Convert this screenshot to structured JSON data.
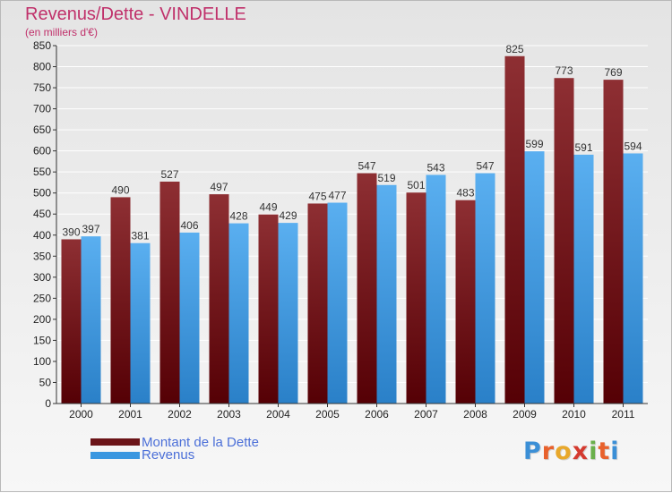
{
  "title": "Revenus/Dette - VINDELLE",
  "subtitle": "(en milliers d'€)",
  "colors": {
    "title": "#c0306a",
    "dette": "#6b1418",
    "revenus": "#3a97e0",
    "legend_text": "#4b6fd8"
  },
  "legend": {
    "dette_label": "Montant de la Dette",
    "revenus_label": "Revenus"
  },
  "logo": {
    "letters": [
      "P",
      "r",
      "o",
      "x",
      "i",
      "t",
      "i"
    ],
    "colors": [
      "#3b8fd6",
      "#e8612c",
      "#e8a82c",
      "#d43a2f",
      "#6ab04c",
      "#e8612c",
      "#3b8fd6"
    ]
  },
  "chart_data": {
    "type": "bar",
    "categories": [
      "2000",
      "2001",
      "2002",
      "2003",
      "2004",
      "2005",
      "2006",
      "2007",
      "2008",
      "2009",
      "2010",
      "2011"
    ],
    "series": [
      {
        "name": "Montant de la Dette",
        "values": [
          390,
          490,
          527,
          497,
          449,
          475,
          547,
          501,
          483,
          825,
          773,
          769
        ]
      },
      {
        "name": "Revenus",
        "values": [
          397,
          381,
          406,
          428,
          429,
          477,
          519,
          543,
          547,
          599,
          591,
          594
        ]
      }
    ],
    "ylim": [
      0,
      850
    ],
    "yticks": [
      0,
      50,
      100,
      150,
      200,
      250,
      300,
      350,
      400,
      450,
      500,
      550,
      600,
      650,
      700,
      750,
      800,
      850
    ],
    "grid": true,
    "legend_position": "bottom-left"
  }
}
